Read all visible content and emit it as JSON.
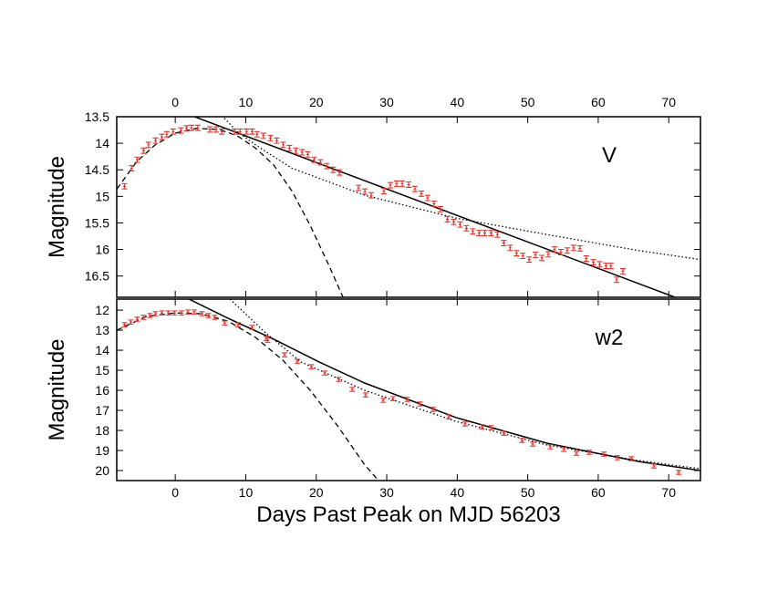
{
  "chart_data": [
    {
      "type": "scatter",
      "annotation": "V",
      "y_label": "Magnitude",
      "xlim": [
        -8.3,
        74.5
      ],
      "xticks": [
        0,
        10,
        20,
        30,
        40,
        50,
        60,
        70
      ],
      "ylim": [
        13.5,
        16.9
      ],
      "invert_y": true,
      "yticks": [
        13.5,
        14,
        14.5,
        15,
        15.5,
        16,
        16.5
      ],
      "points": {
        "color": "#e8302a",
        "yerr": 0.05,
        "x": [
          -7.2,
          -6.2,
          -5.4,
          -4.5,
          -3.8,
          -2.8,
          -1.9,
          -1.2,
          -0.3,
          0.8,
          1.6,
          2.3,
          3.2,
          4.9,
          5.8,
          6.6,
          8.4,
          9.2,
          10.1,
          10.9,
          11.6,
          12.5,
          13.5,
          14.4,
          15.3,
          16.2,
          17.1,
          18,
          18.8,
          19.7,
          20.6,
          21.5,
          22.4,
          23.3,
          26,
          26.9,
          27.8,
          29.6,
          30.5,
          31.4,
          32.2,
          33.1,
          34,
          34.9,
          35.8,
          36.7,
          37.6,
          38.6,
          39.5,
          40.4,
          41.3,
          42.2,
          43.1,
          43.9,
          44.8,
          45.7,
          46.6,
          47.5,
          48.4,
          49.3,
          50.2,
          51.1,
          52,
          52.9,
          53.8,
          54.7,
          55.6,
          56.5,
          57.4,
          58.3,
          59.3,
          60.2,
          61.1,
          61.8,
          62.6,
          63.5
        ],
        "values": [
          14.81,
          14.47,
          14.31,
          14.14,
          14.03,
          13.95,
          13.88,
          13.83,
          13.78,
          13.76,
          13.72,
          13.71,
          13.71,
          13.74,
          13.74,
          13.78,
          13.78,
          13.78,
          13.78,
          13.78,
          13.83,
          13.86,
          13.9,
          13.95,
          14.03,
          14.09,
          14.14,
          14.17,
          14.21,
          14.31,
          14.36,
          14.43,
          14.5,
          14.55,
          14.84,
          14.91,
          14.98,
          14.9,
          14.79,
          14.76,
          14.76,
          14.78,
          14.86,
          14.95,
          15.03,
          15.14,
          15.24,
          15.43,
          15.48,
          15.53,
          15.6,
          15.66,
          15.69,
          15.69,
          15.69,
          15.72,
          15.88,
          15.97,
          16.07,
          16.12,
          16.19,
          16.1,
          16.16,
          16.09,
          16,
          16.05,
          16.02,
          15.97,
          15.98,
          16.17,
          16.24,
          16.28,
          16.31,
          16.31,
          16.57,
          16.41
        ]
      },
      "curves": [
        {
          "style": "solid",
          "x": [
            2.33,
            70.89
          ],
          "values": [
            13.48,
            16.9
          ]
        },
        {
          "style": "dashed",
          "x": [
            -8.28,
            -5.43,
            -2.85,
            0,
            2.98,
            6.21,
            8.8,
            11.38,
            13.97,
            16.56,
            19.15,
            21.73,
            23.8
          ],
          "values": [
            14.86,
            14.34,
            14.03,
            13.81,
            13.72,
            13.74,
            13.86,
            14.09,
            14.41,
            14.9,
            15.55,
            16.28,
            16.9
          ]
        },
        {
          "style": "dotted",
          "x": [
            6.6,
            8.8,
            11.38,
            16.56,
            26.9,
            39.84,
            52.78,
            65.72,
            74.5
          ],
          "values": [
            13.48,
            13.78,
            14.03,
            14.47,
            14.98,
            15.41,
            15.72,
            16.02,
            16.19
          ]
        }
      ]
    },
    {
      "type": "scatter",
      "annotation": "w2",
      "y_label": "Magnitude",
      "x_label": "Days Past Peak on MJD 56203",
      "xlim": [
        -8.3,
        74.5
      ],
      "xticks": [
        0,
        10,
        20,
        30,
        40,
        50,
        60,
        70
      ],
      "ylim": [
        11.45,
        20.5
      ],
      "invert_y": true,
      "yticks": [
        12,
        13,
        14,
        15,
        16,
        17,
        18,
        19,
        20
      ],
      "points": {
        "color": "#e8302a",
        "yerr": 0.1,
        "x": [
          -7.2,
          -6.3,
          -5.4,
          -4.5,
          -3.6,
          -2.8,
          -1.9,
          -1,
          -0.1,
          0.9,
          1.8,
          2.7,
          3.8,
          4.7,
          5.6,
          7,
          8.9,
          10.9,
          12.9,
          13.1,
          15.5,
          17.3,
          19.3,
          21.2,
          23.2,
          25.1,
          27,
          29.5,
          30.9,
          32.9,
          34.7,
          36.6,
          38.8,
          41.1,
          43.5,
          44.8,
          46.6,
          49.2,
          50.7,
          53.2,
          55.1,
          56.9,
          58.7,
          60.8,
          62.7,
          64.7,
          67.9,
          71.4
        ],
        "values": [
          12.73,
          12.59,
          12.45,
          12.36,
          12.27,
          12.18,
          12.14,
          12.14,
          12.14,
          12.14,
          12.09,
          12.09,
          12.18,
          12.27,
          12.36,
          12.64,
          12.73,
          12.86,
          13.41,
          13.5,
          14.23,
          14.55,
          14.82,
          15.14,
          15.45,
          15.95,
          16.23,
          16.5,
          16.41,
          16.45,
          16.68,
          16.95,
          17.32,
          17.68,
          17.82,
          17.86,
          18.14,
          18.5,
          18.68,
          18.82,
          18.95,
          19.14,
          19.09,
          19.18,
          19.36,
          19.41,
          19.77,
          20.09
        ]
      },
      "curves": [
        {
          "style": "solid",
          "x": [
            1.94,
            7.5,
            13.97,
            20.44,
            26.9,
            39.84,
            52.78,
            65.72,
            74.5
          ],
          "values": [
            11.45,
            12.41,
            13.45,
            14.59,
            15.64,
            17.36,
            18.64,
            19.55,
            20
          ]
        },
        {
          "style": "dashed",
          "x": [
            -8.28,
            -4.14,
            0,
            3.62,
            7.5,
            11.38,
            15.27,
            19.15,
            23.03,
            26.9,
            28.85
          ],
          "values": [
            13,
            12.32,
            12.14,
            12.18,
            12.55,
            13.36,
            14.5,
            16,
            17.77,
            19.73,
            20.5
          ]
        },
        {
          "style": "dotted",
          "x": [
            7.76,
            12.68,
            17.85,
            26.9,
            39.84,
            52.78,
            65.72,
            74.5
          ],
          "values": [
            11.45,
            13.09,
            14.59,
            16,
            17.55,
            18.73,
            19.5,
            19.91
          ]
        }
      ]
    }
  ]
}
